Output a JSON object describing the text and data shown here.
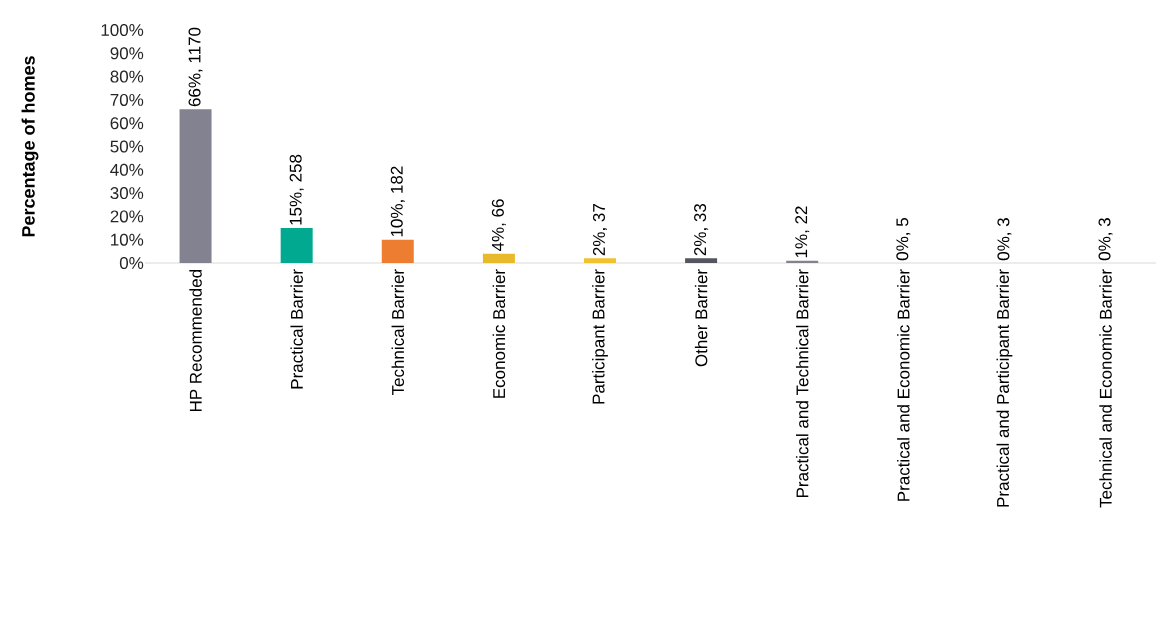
{
  "chart_data": {
    "type": "bar",
    "ylabel": "Percentage of homes",
    "categories": [
      "HP Recommended",
      "Practical Barrier",
      "Technical Barrier",
      "Economic Barrier",
      "Participant Barrier",
      "Other Barrier",
      "Practical and Technical Barrier",
      "Practical and Economic Barrier",
      "Practical and Participant Barrier",
      "Technical and Economic Barrier"
    ],
    "values": [
      66,
      15,
      10,
      4,
      2,
      2,
      1,
      0,
      0,
      0
    ],
    "colors": [
      "#828291",
      "#00a98f",
      "#ed7d31",
      "#e8b92a",
      "#f2c12e",
      "#55555f",
      "#828291",
      "#828291",
      "#828291",
      "#828291"
    ],
    "value_labels": [
      "66%, 1170",
      "15%, 258",
      "10%, 182",
      "4%, 66",
      "2%, 37",
      "2%, 33",
      "1%, 22",
      "0%, 5",
      "0%, 3",
      "0%, 3"
    ],
    "ylim": [
      0,
      100
    ],
    "yticks": [
      {
        "value": 0,
        "label": "0%"
      },
      {
        "value": 10,
        "label": "10%"
      },
      {
        "value": 20,
        "label": "20%"
      },
      {
        "value": 30,
        "label": "30%"
      },
      {
        "value": 40,
        "label": "40%"
      },
      {
        "value": 50,
        "label": "50%"
      },
      {
        "value": 60,
        "label": "60%"
      },
      {
        "value": 70,
        "label": "70%"
      },
      {
        "value": 80,
        "label": "80%"
      },
      {
        "value": 90,
        "label": "90%"
      },
      {
        "value": 100,
        "label": "100%"
      }
    ],
    "grid": false,
    "legend": false
  }
}
